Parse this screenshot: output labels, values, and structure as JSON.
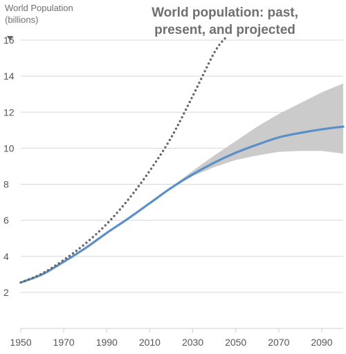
{
  "chart_data": {
    "type": "line",
    "title_lines": [
      "World population: past,",
      "present, and projected"
    ],
    "ylabel_lines": [
      "World Population",
      "(billions)"
    ],
    "xlim": [
      1950,
      2100
    ],
    "ylim": [
      0,
      16.5
    ],
    "x_ticks": [
      1950,
      1970,
      1990,
      2010,
      2030,
      2050,
      2070,
      2090
    ],
    "y_ticks": [
      2,
      4,
      6,
      8,
      10,
      12,
      14,
      16
    ],
    "grid": true,
    "colors": {
      "main": "#5b8fc8",
      "dotted": "#666666",
      "band": "#c8c8c8",
      "grid": "#d7d7d7",
      "axis_arrow": "#666666"
    },
    "series": [
      {
        "style": "solid",
        "x": [
          1950,
          1960,
          1970,
          1980,
          1990,
          2000,
          2010,
          2020,
          2030,
          2040,
          2050,
          2060,
          2070,
          2080,
          2090,
          2100
        ],
        "y": [
          2.55,
          3.0,
          3.7,
          4.45,
          5.3,
          6.1,
          6.95,
          7.8,
          8.55,
          9.2,
          9.75,
          10.2,
          10.6,
          10.85,
          11.05,
          11.2
        ]
      },
      {
        "style": "dotted",
        "x": [
          1950,
          1960,
          1970,
          1980,
          1990,
          2000,
          2010,
          2020,
          2030,
          2040,
          2045
        ],
        "y": [
          2.55,
          3.05,
          3.8,
          4.7,
          5.8,
          7.15,
          8.75,
          10.6,
          12.9,
          15.3,
          16.1
        ]
      }
    ],
    "band": {
      "x": [
        2020,
        2030,
        2040,
        2050,
        2060,
        2070,
        2080,
        2090,
        2100
      ],
      "upper": [
        7.85,
        8.75,
        9.6,
        10.4,
        11.2,
        11.9,
        12.5,
        13.1,
        13.6
      ],
      "lower": [
        7.8,
        8.45,
        8.95,
        9.35,
        9.6,
        9.8,
        9.85,
        9.85,
        9.7
      ]
    }
  }
}
